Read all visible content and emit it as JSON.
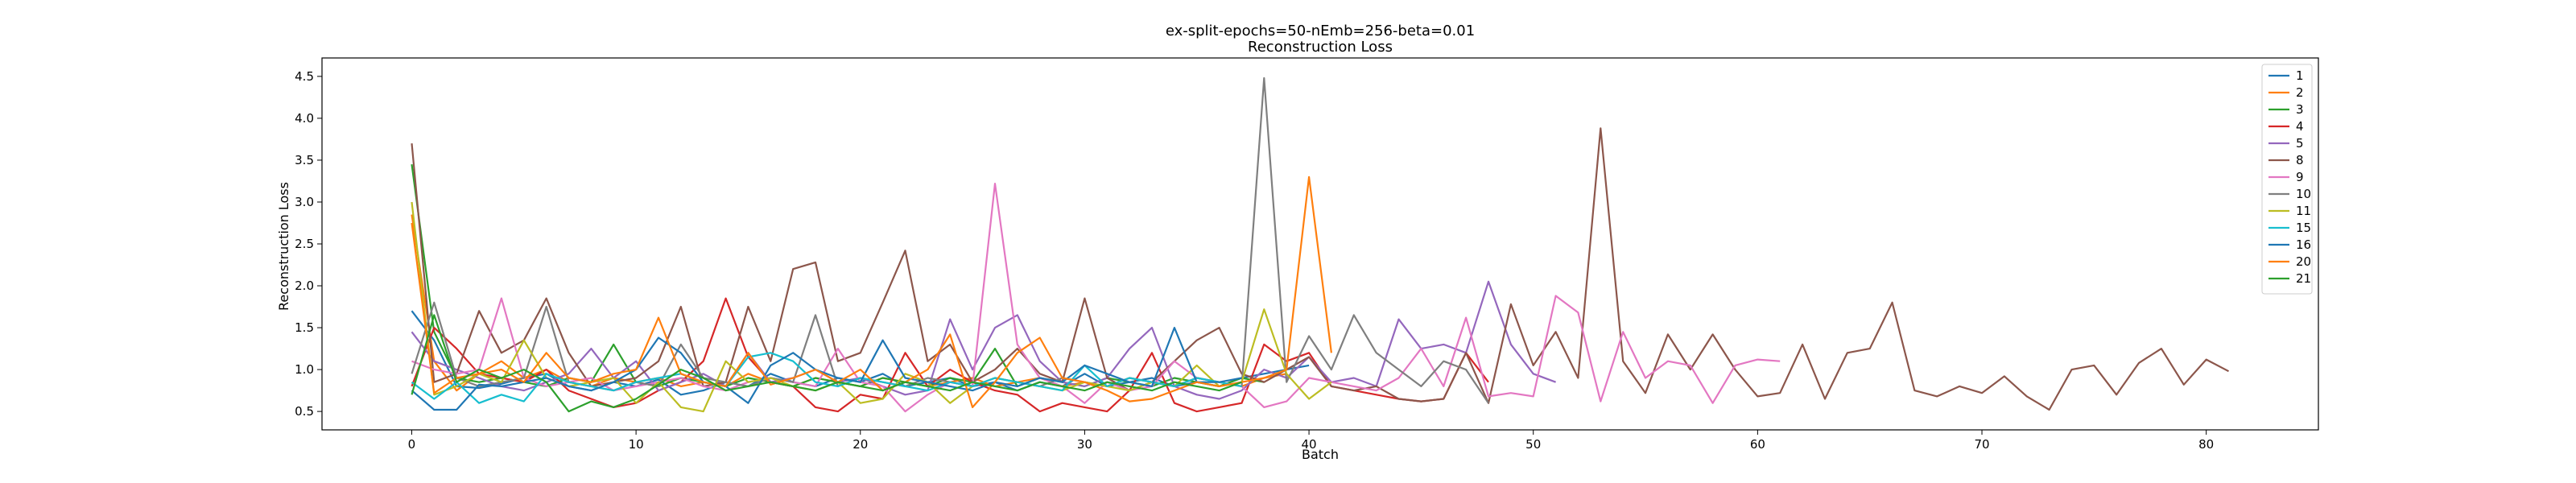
{
  "chart_data": {
    "type": "line",
    "title": "ex-split-epochs=50-nEmb=256-beta=0.01",
    "subtitle": "Reconstruction Loss",
    "xlabel": "Batch",
    "ylabel": "Reconstruction Loss",
    "xlim": [
      -4,
      85
    ],
    "ylim": [
      0.28,
      4.72
    ],
    "xticks": [
      0,
      10,
      20,
      30,
      40,
      50,
      60,
      70,
      80
    ],
    "yticks": [
      0.5,
      1.0,
      1.5,
      2.0,
      2.5,
      3.0,
      3.5,
      4.0,
      4.5
    ],
    "grid": false,
    "legend_position": "top-right",
    "series": [
      {
        "name": "1",
        "color": "#1f77b4",
        "values": [
          1.7,
          1.35,
          0.8,
          0.78,
          0.83,
          0.9,
          0.95,
          0.8,
          0.75,
          0.85,
          0.8,
          0.88,
          0.7,
          0.75,
          0.85,
          0.8,
          0.95,
          0.85,
          0.8,
          0.9,
          0.85,
          0.95,
          0.8,
          0.85,
          0.9,
          0.8,
          0.85,
          0.75,
          0.85,
          0.8,
          0.95,
          0.8,
          0.85,
          0.9,
          0.8,
          0.85,
          0.8,
          0.9,
          0.95,
          1.0,
          1.05
        ]
      },
      {
        "name": "2",
        "color": "#ff7f0e",
        "values": [
          2.85,
          1.1,
          0.75,
          0.95,
          1.1,
          0.9,
          1.0,
          0.85,
          0.8,
          0.9,
          0.85,
          0.9,
          0.8,
          0.85,
          0.8,
          0.95,
          0.85,
          0.8,
          0.9,
          0.85,
          0.8,
          0.9,
          0.85,
          0.8,
          0.85,
          0.9,
          0.8,
          0.85,
          0.9,
          0.8,
          0.85,
          0.8,
          0.9,
          0.85,
          0.8,
          0.9,
          0.85,
          0.8,
          0.9,
          0.95
        ]
      },
      {
        "name": "3",
        "color": "#2ca02c",
        "values": [
          3.45,
          1.45,
          0.9,
          0.85,
          0.9,
          0.85,
          0.8,
          0.9,
          0.85,
          1.3,
          0.85,
          0.8,
          0.9,
          0.85,
          0.8,
          0.9,
          0.85,
          0.8,
          0.9,
          0.85,
          0.8,
          0.9,
          0.85,
          0.8,
          0.9,
          0.85,
          1.25,
          0.8,
          0.9,
          0.85,
          0.8,
          0.9,
          0.85,
          0.8,
          0.9,
          0.85,
          0.8,
          0.9,
          0.85
        ]
      },
      {
        "name": "4",
        "color": "#d62728",
        "values": [
          0.8,
          1.5,
          1.25,
          0.95,
          0.9,
          0.85,
          1.0,
          0.75,
          0.65,
          0.55,
          0.6,
          0.75,
          0.85,
          1.1,
          1.85,
          1.15,
          0.85,
          0.8,
          0.55,
          0.5,
          0.7,
          0.65,
          1.2,
          0.8,
          1.0,
          0.85,
          0.75,
          0.7,
          0.5,
          0.6,
          0.55,
          0.5,
          0.75,
          1.2,
          0.6,
          0.5,
          0.55,
          0.6,
          1.3,
          1.1,
          1.2,
          0.8,
          0.75,
          0.7,
          0.65,
          0.62,
          0.65,
          1.2,
          0.85
        ]
      },
      {
        "name": "5",
        "color": "#9467bd",
        "values": [
          1.45,
          1.1,
          1.0,
          0.9,
          0.8,
          0.75,
          0.85,
          0.95,
          1.25,
          0.9,
          1.1,
          0.75,
          0.85,
          0.95,
          0.8,
          1.2,
          0.85,
          0.9,
          1.0,
          0.85,
          0.9,
          0.8,
          0.7,
          0.75,
          1.6,
          1.0,
          1.5,
          1.65,
          1.1,
          0.85,
          0.8,
          0.9,
          1.25,
          1.5,
          0.8,
          0.7,
          0.65,
          0.75,
          1.0,
          0.9,
          1.15,
          0.85,
          0.9,
          0.8,
          1.6,
          1.25,
          1.3,
          1.2,
          2.05,
          1.3,
          0.95,
          0.85
        ]
      },
      {
        "name": "8",
        "color": "#8c564b",
        "values": [
          3.7,
          0.85,
          0.95,
          1.7,
          1.2,
          1.35,
          1.85,
          1.2,
          0.8,
          0.85,
          0.9,
          1.1,
          1.75,
          0.8,
          0.85,
          1.75,
          1.1,
          2.2,
          2.28,
          1.1,
          1.2,
          1.8,
          2.42,
          1.1,
          1.3,
          0.85,
          1.0,
          1.25,
          0.95,
          0.85,
          1.85,
          0.9,
          0.75,
          0.85,
          1.1,
          1.35,
          1.5,
          0.95,
          0.85,
          1.0,
          1.15,
          0.8,
          0.75,
          0.8,
          0.65,
          0.62,
          0.65,
          1.2,
          0.6,
          1.78,
          1.05,
          1.45,
          0.9,
          3.88,
          1.1,
          0.72,
          1.42,
          1.0,
          1.42,
          1.0,
          0.68,
          0.72,
          1.3,
          0.65,
          1.2,
          1.25,
          1.8,
          0.75,
          0.68,
          0.8,
          0.72,
          0.92,
          0.68,
          0.52,
          1.0,
          1.05,
          0.7,
          1.08,
          1.25,
          0.82,
          1.12,
          0.98
        ]
      },
      {
        "name": "9",
        "color": "#e377c2",
        "values": [
          1.1,
          1.0,
          0.95,
          1.0,
          1.85,
          0.9,
          0.8,
          0.85,
          0.9,
          0.75,
          0.8,
          0.85,
          0.9,
          0.8,
          0.75,
          0.85,
          0.9,
          0.85,
          0.8,
          1.25,
          0.85,
          0.8,
          0.5,
          0.7,
          0.85,
          0.8,
          3.22,
          1.3,
          0.9,
          0.8,
          0.6,
          0.85,
          0.75,
          0.8,
          1.1,
          0.9,
          0.85,
          0.8,
          0.55,
          0.62,
          0.9,
          0.85,
          0.8,
          0.75,
          0.9,
          1.25,
          0.8,
          1.62,
          0.68,
          0.72,
          0.68,
          1.88,
          1.68,
          0.62,
          1.45,
          0.9,
          1.1,
          1.05,
          0.6,
          1.05,
          1.12,
          1.1
        ]
      },
      {
        "name": "10",
        "color": "#7f7f7f",
        "values": [
          0.95,
          1.8,
          0.9,
          0.8,
          0.85,
          0.9,
          1.75,
          0.85,
          0.8,
          0.75,
          0.85,
          0.8,
          1.3,
          0.9,
          0.85,
          0.8,
          0.9,
          0.85,
          1.65,
          0.8,
          0.9,
          0.85,
          0.8,
          0.9,
          0.85,
          0.8,
          0.9,
          0.85,
          0.8,
          0.9,
          0.85,
          0.8,
          0.9,
          0.85,
          0.8,
          0.9,
          0.85,
          0.8,
          4.48,
          0.85,
          1.4,
          1.0,
          1.65,
          1.2,
          1.0,
          0.8,
          1.1,
          1.0,
          0.6
        ]
      },
      {
        "name": "11",
        "color": "#bcbd22",
        "values": [
          3.0,
          0.7,
          0.8,
          0.95,
          0.85,
          1.35,
          0.9,
          0.8,
          0.85,
          0.9,
          0.6,
          0.85,
          0.55,
          0.5,
          1.1,
          0.85,
          0.9,
          0.8,
          0.75,
          0.85,
          0.6,
          0.65,
          0.95,
          0.85,
          0.6,
          0.8,
          0.9,
          0.85,
          0.8,
          0.75,
          0.85,
          0.8,
          0.75,
          0.85,
          0.8,
          1.05,
          0.8,
          0.85,
          1.72,
          0.95,
          0.65,
          0.85
        ]
      },
      {
        "name": "15",
        "color": "#17becf",
        "values": [
          0.85,
          0.65,
          0.85,
          0.6,
          0.7,
          0.62,
          0.95,
          0.85,
          0.8,
          0.75,
          0.85,
          0.9,
          0.95,
          0.85,
          0.8,
          1.15,
          1.2,
          1.1,
          0.85,
          0.8,
          0.9,
          0.85,
          0.8,
          0.75,
          0.85,
          0.8,
          0.9,
          0.85,
          0.8,
          0.75,
          1.05,
          0.8,
          0.9,
          0.85,
          0.8,
          0.9,
          0.85,
          0.8
        ]
      },
      {
        "name": "16",
        "color": "#1f77b4",
        "values": [
          0.75,
          0.52,
          0.52,
          0.82,
          0.8,
          0.85,
          0.9,
          0.8,
          0.75,
          0.85,
          1.0,
          1.38,
          1.2,
          0.85,
          0.8,
          0.6,
          1.05,
          1.2,
          1.0,
          0.9,
          0.85,
          1.35,
          0.9,
          0.85,
          0.8,
          0.75,
          0.85,
          0.8,
          0.9,
          0.85,
          1.05,
          0.95,
          0.85,
          0.8,
          1.5,
          0.85,
          0.85,
          0.9
        ]
      },
      {
        "name": "20",
        "color": "#ff7f0e",
        "values": [
          2.75,
          0.72,
          0.9,
          0.95,
          1.0,
          0.85,
          1.2,
          0.9,
          0.85,
          0.95,
          1.0,
          1.62,
          0.95,
          0.85,
          0.8,
          1.2,
          0.82,
          0.9,
          1.0,
          0.85,
          1.0,
          0.75,
          0.85,
          1.0,
          1.42,
          0.55,
          0.85,
          1.2,
          1.38,
          0.9,
          0.85,
          0.75,
          0.62,
          0.65,
          0.75,
          0.85,
          0.8,
          0.85,
          0.9,
          1.0,
          3.3,
          1.2
        ]
      },
      {
        "name": "21",
        "color": "#2ca02c",
        "values": [
          0.7,
          1.65,
          0.85,
          1.0,
          0.9,
          1.0,
          0.85,
          0.5,
          0.62,
          0.55,
          0.65,
          0.82,
          1.0,
          0.9,
          0.75,
          0.8,
          0.85,
          0.8,
          0.75,
          0.85,
          0.8,
          0.75,
          0.85,
          0.8,
          0.75,
          0.85,
          0.8,
          0.75,
          0.85,
          0.8,
          0.75,
          0.85,
          0.8,
          0.75,
          0.85,
          0.8,
          0.75,
          0.85
        ]
      }
    ]
  }
}
